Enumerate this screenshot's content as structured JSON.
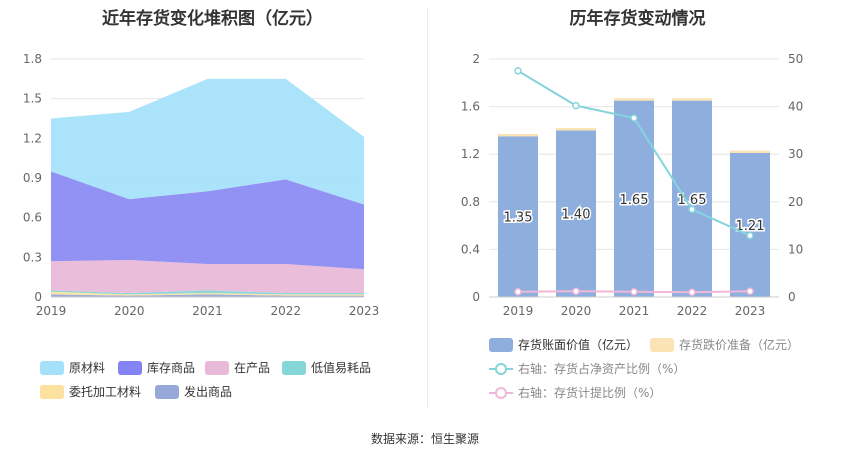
{
  "left": {
    "title": "近年存货变化堆积图（亿元）",
    "legend": [
      "原材料",
      "库存商品",
      "在产品",
      "低值易耗品",
      "委托加工材料",
      "发出商品"
    ]
  },
  "right": {
    "title": "历年存货变动情况",
    "legend": [
      "存货账面价值（亿元）",
      "存货跌价准备（亿元）",
      "右轴：存货占净资产比例（%）",
      "右轴：存货计提比例（%）"
    ]
  },
  "source": "数据来源：恒生聚源",
  "colors": {
    "原材料": "#a6e1fa",
    "库存商品": "#8c8cf3",
    "在产品": "#e9b9d8",
    "低值易耗品": "#86d6d8",
    "委托加工材料": "#fde1a0",
    "发出商品": "#97a9d8",
    "bar": "#8eaede",
    "bar_cap": "#fce3b5",
    "ratio_line": "#86d4dc",
    "provision_line": "#f0b7d8"
  },
  "chart_data": [
    {
      "type": "area",
      "stacked": true,
      "categories": [
        "2019",
        "2020",
        "2021",
        "2022",
        "2023"
      ],
      "ylim": [
        0,
        1.8
      ],
      "yticks": [
        "0",
        "0.3",
        "0.6",
        "0.9",
        "1.2",
        "1.5",
        "1.8"
      ],
      "series": [
        {
          "name": "发出商品",
          "values": [
            0.02,
            0.01,
            0.02,
            0.01,
            0.01
          ]
        },
        {
          "name": "委托加工材料",
          "values": [
            0.02,
            0.01,
            0.01,
            0.01,
            0.01
          ]
        },
        {
          "name": "低值易耗品",
          "values": [
            0.01,
            0.01,
            0.02,
            0.01,
            0.01
          ]
        },
        {
          "name": "在产品",
          "values": [
            0.22,
            0.25,
            0.2,
            0.22,
            0.18
          ]
        },
        {
          "name": "库存商品",
          "values": [
            0.68,
            0.46,
            0.55,
            0.64,
            0.49
          ]
        },
        {
          "name": "原材料",
          "values": [
            0.4,
            0.66,
            0.85,
            0.76,
            0.51
          ]
        }
      ]
    },
    {
      "type": "bar",
      "stacked": true,
      "categories": [
        "2019",
        "2020",
        "2021",
        "2022",
        "2023"
      ],
      "ylim": [
        0,
        2
      ],
      "yticks": [
        "0",
        "0.4",
        "0.8",
        "1.2",
        "1.6",
        "2"
      ],
      "y2lim": [
        0,
        50
      ],
      "y2ticks": [
        "0",
        "10",
        "20",
        "30",
        "40",
        "50"
      ],
      "series": [
        {
          "name": "存货账面价值（亿元）",
          "values": [
            1.35,
            1.4,
            1.65,
            1.65,
            1.21
          ],
          "labels": [
            "1.35",
            "1.40",
            "1.65",
            "1.65",
            "1.21"
          ]
        },
        {
          "name": "存货跌价准备（亿元）",
          "values": [
            0.02,
            0.02,
            0.02,
            0.02,
            0.02
          ]
        },
        {
          "name": "右轴：存货占净资产比例（%）",
          "axis": "right",
          "values": [
            47.5,
            40.2,
            37.6,
            18.4,
            12.9
          ]
        },
        {
          "name": "右轴：存货计提比例（%）",
          "axis": "right",
          "values": [
            1.1,
            1.2,
            1.1,
            1.0,
            1.2
          ]
        }
      ]
    }
  ]
}
